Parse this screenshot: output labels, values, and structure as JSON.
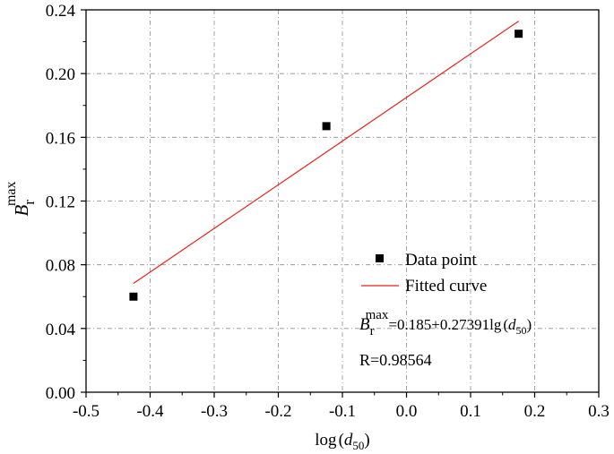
{
  "chart_data": {
    "type": "scatter",
    "title": "",
    "xlim": [
      -0.5,
      0.3
    ],
    "ylim": [
      0.0,
      0.24
    ],
    "x_ticks": [
      -0.5,
      -0.4,
      -0.3,
      -0.2,
      -0.1,
      0.0,
      0.1,
      0.2,
      0.3
    ],
    "x_tick_labels": [
      "-0.5",
      "-0.4",
      "-0.3",
      "-0.2",
      "-0.1",
      "0.0",
      "0.1",
      "0.2",
      "0.3"
    ],
    "y_ticks": [
      0.0,
      0.04,
      0.08,
      0.12,
      0.16,
      0.2,
      0.24
    ],
    "y_tick_labels": [
      "0.00",
      "0.04",
      "0.08",
      "0.12",
      "0.16",
      "0.20",
      "0.24"
    ],
    "grid": true,
    "xlabel": {
      "prefix": "log",
      "var": "d",
      "sub": "50"
    },
    "ylabel": {
      "var": "B",
      "sub": "r",
      "sup": "max"
    },
    "series": [
      {
        "name": "Data point",
        "kind": "scatter",
        "marker": "square",
        "color": "#000000",
        "points": [
          {
            "x": -0.426,
            "y": 0.06
          },
          {
            "x": -0.125,
            "y": 0.167
          },
          {
            "x": 0.175,
            "y": 0.225
          }
        ]
      },
      {
        "name": "Fitted curve",
        "kind": "line",
        "color": "#e8231c",
        "intercept": 0.185,
        "slope": 0.27391,
        "x_range": [
          -0.426,
          0.175
        ]
      }
    ],
    "legend": {
      "position": "bottom-right"
    },
    "annotation": {
      "equation": {
        "var": "B",
        "sub": "r",
        "sup": "max",
        "body": "=0.185+0.27391lg",
        "arg_var": "d",
        "arg_sub": "50"
      },
      "r_text": "R=0.98564"
    }
  }
}
